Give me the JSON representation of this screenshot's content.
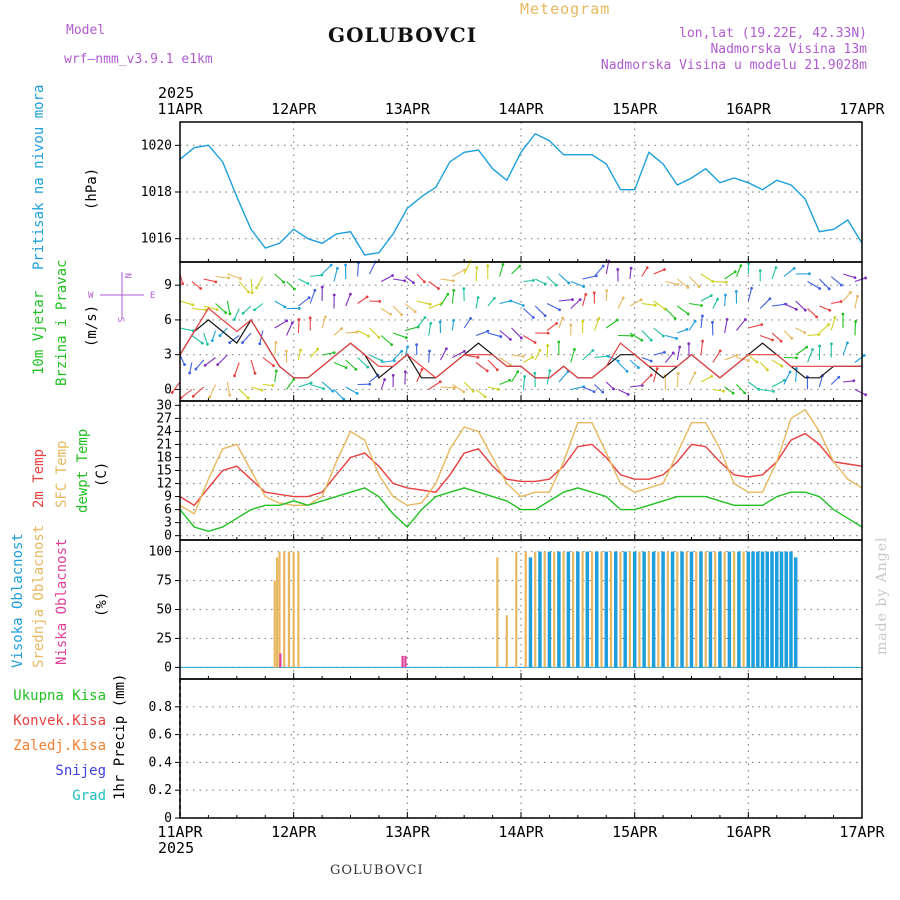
{
  "header": {
    "model_label": "Model",
    "model_name": "wrf–nmm_v3.9.1  e1km",
    "title": "GOLUBOVCI",
    "meteogram_label": "Meteogram",
    "lonlat": "lon,lat (19.22E, 42.33N)",
    "elevation": "Nadmorska Visina 13m",
    "model_elevation": "Nadmorska Visina u modelu 21.9028m",
    "footer_title": "GOLUBOVCI",
    "credit": "made by Angel",
    "colors": {
      "purple": "#b05cd0",
      "orange": "#e8b860",
      "cyan": "#1e9fdc",
      "green": "#22c022",
      "red": "#e84040"
    }
  },
  "time_axis": {
    "year": "2025",
    "labels": [
      "11APR",
      "12APR",
      "13APR",
      "14APR",
      "15APR",
      "16APR",
      "17APR"
    ]
  },
  "wind_legend": {
    "n": "N",
    "s": "S",
    "e": "E",
    "w": "W"
  },
  "chart_data": [
    {
      "type": "line",
      "panel": "pressure",
      "ylabel_main": "Pritisak na nivou mora",
      "ylabel_unit": "(hPa)",
      "ylim": [
        1015,
        1021
      ],
      "yticks": [
        1016,
        1018,
        1020
      ],
      "grid": true,
      "x_hours": [
        0,
        3,
        6,
        9,
        12,
        15,
        18,
        21,
        24,
        27,
        30,
        33,
        36,
        39,
        42,
        45,
        48,
        51,
        54,
        57,
        60,
        63,
        66,
        69,
        72,
        75,
        78,
        81,
        84,
        87,
        90,
        93,
        96,
        99,
        102,
        105,
        108,
        111,
        114,
        117,
        120,
        123,
        126,
        129,
        132,
        135,
        138,
        141,
        144
      ],
      "series": [
        {
          "color": "#1e9fdc",
          "values": [
            1019.4,
            1019.9,
            1020.0,
            1019.3,
            1017.8,
            1016.4,
            1015.6,
            1015.8,
            1016.4,
            1016.0,
            1015.8,
            1016.2,
            1016.3,
            1015.3,
            1015.4,
            1016.2,
            1017.3,
            1017.8,
            1018.2,
            1019.3,
            1019.7,
            1019.8,
            1019.0,
            1018.5,
            1019.7,
            1020.5,
            1020.2,
            1019.6,
            1019.6,
            1019.6,
            1019.2,
            1018.1,
            1018.1,
            1019.7,
            1019.2,
            1018.3,
            1018.6,
            1019.0,
            1018.4,
            1018.6,
            1018.4,
            1018.1,
            1018.5,
            1018.3,
            1017.7,
            1016.3,
            1016.4,
            1016.8,
            1015.8
          ]
        }
      ]
    },
    {
      "type": "line",
      "panel": "wind",
      "ylabel_main": "10m Vjetar",
      "ylabel_main2": "Brzina i Pravac",
      "ylabel_unit": "(m/s)",
      "ylim": [
        -1,
        11
      ],
      "yticks": [
        0,
        3,
        6,
        9
      ],
      "grid": true,
      "x_hours": [
        0,
        3,
        6,
        9,
        12,
        15,
        18,
        21,
        24,
        27,
        30,
        33,
        36,
        39,
        42,
        45,
        48,
        51,
        54,
        57,
        60,
        63,
        66,
        69,
        72,
        75,
        78,
        81,
        84,
        87,
        90,
        93,
        96,
        99,
        102,
        105,
        108,
        111,
        114,
        117,
        120,
        123,
        126,
        129,
        132,
        135,
        138,
        141,
        144
      ],
      "series": [
        {
          "color": "#111111",
          "values": [
            3,
            5,
            6,
            5,
            4,
            6,
            4,
            2,
            1,
            1,
            2,
            3,
            4,
            3,
            1,
            2,
            3,
            1,
            1,
            2,
            3,
            4,
            3,
            2,
            2,
            1,
            1,
            2,
            1,
            1,
            2,
            3,
            3,
            2,
            1,
            2,
            3,
            2,
            1,
            2,
            3,
            4,
            3,
            2,
            1,
            1,
            2,
            2,
            2
          ]
        },
        {
          "color": "#e84040",
          "values": [
            3,
            5,
            7,
            6,
            5,
            6,
            4,
            2,
            1,
            1,
            2,
            3,
            4,
            3,
            2,
            2,
            3,
            2,
            1,
            2,
            3,
            3,
            3,
            2,
            2,
            1,
            1,
            2,
            1,
            1,
            2,
            4,
            3,
            2,
            2,
            2,
            3,
            2,
            1,
            2,
            3,
            3,
            3,
            2,
            2,
            2,
            2,
            2,
            2
          ]
        }
      ]
    },
    {
      "type": "line",
      "panel": "temperature",
      "ylabel_main": "2m Temp",
      "ylabel_main2": "SFC Temp",
      "ylabel_main3": "dewpt Temp",
      "ylabel_unit": "(C)",
      "ylim": [
        -1,
        31
      ],
      "yticks": [
        0,
        3,
        6,
        9,
        12,
        15,
        18,
        21,
        24,
        27,
        30
      ],
      "grid": true,
      "x_hours": [
        0,
        3,
        6,
        9,
        12,
        15,
        18,
        21,
        24,
        27,
        30,
        33,
        36,
        39,
        42,
        45,
        48,
        51,
        54,
        57,
        60,
        63,
        66,
        69,
        72,
        75,
        78,
        81,
        84,
        87,
        90,
        93,
        96,
        99,
        102,
        105,
        108,
        111,
        114,
        117,
        120,
        123,
        126,
        129,
        132,
        135,
        138,
        141,
        144
      ],
      "series": [
        {
          "name": "2m Temp",
          "color": "#e84040",
          "values": [
            9,
            7,
            11,
            15,
            16,
            13,
            10,
            9.5,
            9,
            9,
            10,
            14,
            18,
            19,
            16,
            12,
            11,
            10.5,
            10,
            14,
            19,
            20,
            16,
            13,
            12.5,
            12.5,
            13,
            16,
            20.5,
            21,
            18,
            14,
            13,
            13,
            14,
            17,
            21,
            20.5,
            17,
            14,
            13.5,
            14,
            17,
            22,
            23.5,
            21,
            17,
            16.5,
            16
          ]
        },
        {
          "name": "SFC Temp",
          "color": "#e8b860",
          "values": [
            7,
            5,
            13,
            20,
            21,
            15,
            9,
            7.5,
            7,
            7,
            9,
            17,
            24,
            22,
            14,
            9,
            7,
            7.5,
            12,
            20,
            25,
            24,
            18,
            12,
            9,
            10,
            10,
            17,
            26,
            26,
            19,
            12,
            10,
            11,
            12,
            19,
            26,
            26,
            20,
            12,
            10,
            10,
            17,
            27,
            29,
            24,
            17,
            13,
            11
          ]
        },
        {
          "name": "dewpt Temp",
          "color": "#22c022",
          "values": [
            6,
            2,
            1,
            2,
            4,
            6,
            7,
            7,
            8,
            7,
            8,
            9,
            10,
            11,
            9,
            5,
            2,
            6,
            9,
            10,
            11,
            10,
            9,
            8,
            6,
            6,
            8,
            10,
            11,
            10,
            9,
            6,
            6,
            7,
            8,
            9,
            9,
            9,
            8,
            7,
            7,
            7,
            9,
            10,
            10,
            9,
            6,
            4,
            2
          ]
        }
      ]
    },
    {
      "type": "bar",
      "panel": "clouds",
      "ylabel_main": "Visoka Oblacnost",
      "ylabel_main2": "Srednja Oblacnost",
      "ylabel_main3": "Niska Oblacnost",
      "ylabel_unit": "(%)",
      "ylim": [
        -10,
        110
      ],
      "yticks": [
        0,
        25,
        50,
        75,
        100
      ],
      "grid": true,
      "series": [
        {
          "name": "Visoka Oblacnost",
          "color": "#1e9fdc",
          "x_hours": [
            74,
            76,
            78,
            80,
            82,
            84,
            86,
            88,
            90,
            92,
            94,
            96,
            98,
            100,
            102,
            104,
            106,
            108,
            110,
            112,
            114,
            116,
            118,
            120,
            121,
            122,
            123,
            124,
            125,
            126,
            127,
            128,
            129,
            130
          ],
          "values": [
            95,
            100,
            100,
            100,
            100,
            100,
            100,
            100,
            100,
            100,
            100,
            100,
            100,
            100,
            100,
            100,
            100,
            100,
            100,
            100,
            100,
            100,
            100,
            100,
            100,
            100,
            100,
            100,
            100,
            100,
            100,
            100,
            100,
            95
          ]
        },
        {
          "name": "Srednja Oblacnost",
          "color": "#e8b860",
          "x_hours": [
            20,
            20.5,
            21,
            22,
            23,
            24,
            25,
            67,
            69,
            71,
            73,
            75,
            77,
            79,
            81,
            83,
            85,
            87,
            89,
            91,
            93,
            95,
            97,
            99,
            101,
            103,
            105,
            107,
            109,
            111,
            113,
            115,
            117,
            119
          ],
          "values": [
            75,
            95,
            100,
            100,
            100,
            100,
            100,
            95,
            45,
            100,
            100,
            100,
            100,
            100,
            100,
            100,
            100,
            100,
            100,
            100,
            100,
            100,
            100,
            100,
            100,
            100,
            100,
            100,
            100,
            100,
            100,
            100,
            100,
            100
          ]
        },
        {
          "name": "Niska Oblacnost",
          "color": "#e0409a",
          "x_hours": [
            21.2,
            47,
            47.6
          ],
          "values": [
            12,
            10,
            10
          ]
        }
      ]
    },
    {
      "type": "line",
      "panel": "precipitation",
      "ylabel_main": "1hr Precip (mm)",
      "legend": [
        "Ukupna Kisa",
        "Konvek.Kisa",
        "Zaledj.Kisa",
        "Snijeg",
        "Grad"
      ],
      "legend_colors": [
        "#22c022",
        "#e84040",
        "#f08030",
        "#4040e0",
        "#20c0c0"
      ],
      "ylim": [
        0,
        1
      ],
      "yticks": [
        0,
        0.2,
        0.4,
        0.6,
        0.8
      ],
      "ytick_labels": [
        "0",
        "0.2",
        "0.4",
        "0.6",
        "0.8"
      ],
      "grid": true,
      "series": []
    }
  ]
}
